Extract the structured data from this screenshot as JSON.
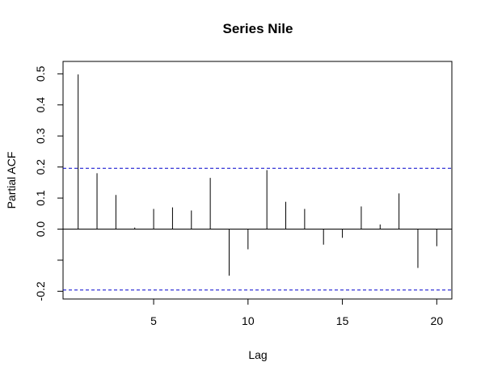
{
  "chart_data": {
    "type": "bar",
    "title": "Series  Nile",
    "xlabel": "Lag",
    "ylabel": "Partial ACF",
    "xlim": [
      0.2,
      20.8
    ],
    "ylim": [
      -0.225,
      0.54
    ],
    "x_ticks": [
      5,
      10,
      15,
      20
    ],
    "y_ticks": [
      -0.2,
      -0.1,
      0.0,
      0.1,
      0.2,
      0.3,
      0.4,
      0.5
    ],
    "y_tick_labels": [
      "-0.2",
      "",
      "0.0",
      "0.1",
      "0.2",
      "0.3",
      "0.4",
      "0.5"
    ],
    "confidence_limit": 0.196,
    "confidence_color": "#0000cc",
    "lags": [
      1,
      2,
      3,
      4,
      5,
      6,
      7,
      8,
      9,
      10,
      11,
      12,
      13,
      14,
      15,
      16,
      17,
      18,
      19,
      20
    ],
    "values": [
      0.498,
      0.18,
      0.11,
      0.005,
      0.065,
      0.07,
      0.06,
      0.165,
      -0.15,
      -0.065,
      0.19,
      0.088,
      0.065,
      -0.05,
      -0.028,
      0.073,
      0.015,
      0.115,
      -0.125,
      -0.055
    ]
  }
}
